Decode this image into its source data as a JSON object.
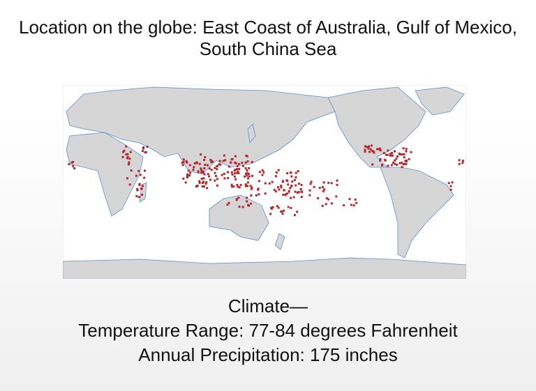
{
  "header": {
    "title": "Location on the globe: East Coast of Australia, Gulf of Mexico, South China Sea"
  },
  "climate": {
    "heading": "Climate—",
    "temperature": "Temperature Range: 77-84 degrees Fahrenheit",
    "precipitation": "Annual Precipitation: 175 inches"
  }
}
